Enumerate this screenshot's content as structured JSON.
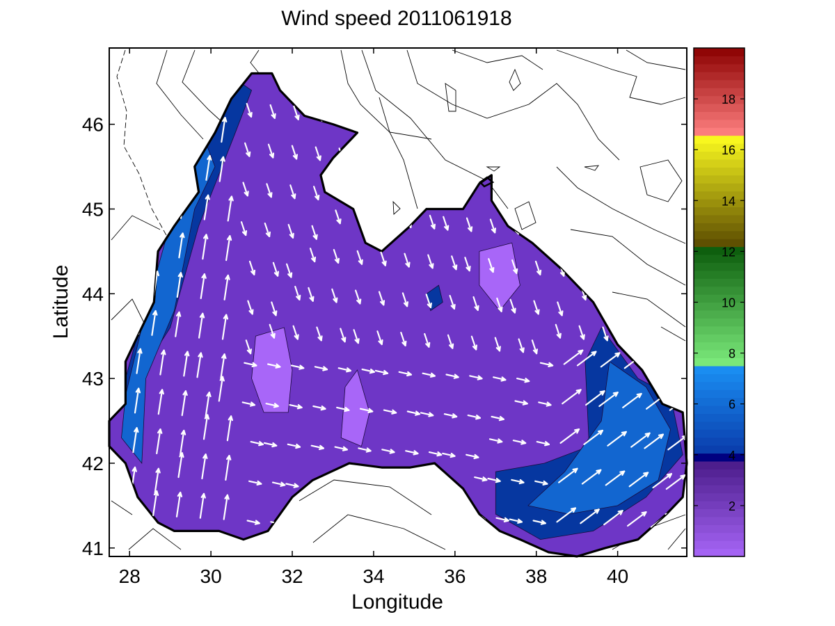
{
  "chart_data": {
    "type": "heatmap",
    "title": "Wind speed 2011061918",
    "xlabel": "Longitude",
    "ylabel": "Latitude",
    "xlim": [
      27.5,
      41.7
    ],
    "ylim": [
      40.9,
      46.9
    ],
    "xticks": [
      28,
      30,
      32,
      34,
      36,
      38,
      40
    ],
    "yticks": [
      41,
      42,
      43,
      44,
      45,
      46
    ],
    "grid": false,
    "colorbar": {
      "range": [
        0,
        20
      ],
      "ticks": [
        2,
        4,
        6,
        8,
        10,
        12,
        14,
        16,
        18
      ],
      "bands": [
        {
          "from": 0,
          "to": 3.7,
          "color_low": "#a866f8",
          "color_high": "#4a1c8a"
        },
        {
          "from": 3.7,
          "to": 4.2,
          "color_low": "#000080",
          "color_high": "#000080"
        },
        {
          "from": 4.2,
          "to": 7.4,
          "color_low": "#0a3fae",
          "color_high": "#1a8ef2"
        },
        {
          "from": 7.4,
          "to": 12.2,
          "color_low": "#80f080",
          "color_high": "#0a5a0a"
        },
        {
          "from": 12.2,
          "to": 16.6,
          "color_low": "#5a4a00",
          "color_high": "#ffff20"
        },
        {
          "from": 16.6,
          "to": 20,
          "color_low": "#ff8080",
          "color_high": "#8b0000"
        }
      ]
    },
    "wind_regions": [
      {
        "level": "weak",
        "speed": 1,
        "color": "#a866f8",
        "polygon": [
          [
            31.1,
            43.5
          ],
          [
            31.8,
            43.6
          ],
          [
            32.0,
            43.1
          ],
          [
            31.9,
            42.6
          ],
          [
            31.3,
            42.6
          ],
          [
            31.0,
            43.0
          ]
        ]
      },
      {
        "level": "weak",
        "speed": 1,
        "color": "#a866f8",
        "polygon": [
          [
            33.3,
            42.9
          ],
          [
            33.6,
            43.1
          ],
          [
            33.9,
            42.6
          ],
          [
            33.7,
            42.2
          ],
          [
            33.2,
            42.3
          ]
        ]
      },
      {
        "level": "weak",
        "speed": 1,
        "color": "#a866f8",
        "polygon": [
          [
            36.6,
            44.5
          ],
          [
            37.4,
            44.6
          ],
          [
            37.6,
            44.1
          ],
          [
            37.1,
            43.8
          ],
          [
            36.6,
            44.1
          ]
        ]
      },
      {
        "level": "strong",
        "speed": 4.5,
        "color": "#0637a0",
        "polygon": [
          [
            28.0,
            42.3
          ],
          [
            28.2,
            43.0
          ],
          [
            29.0,
            43.6
          ],
          [
            29.7,
            44.8
          ],
          [
            30.6,
            45.9
          ],
          [
            31.0,
            46.4
          ],
          [
            30.4,
            46.6
          ],
          [
            29.6,
            46.0
          ],
          [
            28.9,
            44.5
          ],
          [
            28.3,
            43.7
          ],
          [
            27.9,
            43.0
          ]
        ]
      },
      {
        "level": "strong",
        "speed": 6,
        "color": "#1266d0",
        "polygon": [
          [
            28.3,
            42.0
          ],
          [
            28.4,
            43.0
          ],
          [
            29.1,
            43.8
          ],
          [
            29.6,
            45.0
          ],
          [
            30.1,
            45.5
          ],
          [
            29.7,
            46.0
          ],
          [
            29.1,
            45.0
          ],
          [
            28.4,
            43.8
          ],
          [
            27.9,
            42.8
          ],
          [
            27.8,
            42.3
          ]
        ]
      },
      {
        "level": "strong",
        "speed": 4.5,
        "color": "#0637a0",
        "polygon": [
          [
            37.0,
            41.9
          ],
          [
            38.2,
            42.0
          ],
          [
            39.3,
            42.2
          ],
          [
            39.2,
            43.2
          ],
          [
            39.6,
            43.6
          ],
          [
            40.5,
            43.0
          ],
          [
            41.3,
            42.8
          ],
          [
            41.6,
            42.1
          ],
          [
            40.7,
            41.6
          ],
          [
            39.4,
            41.2
          ],
          [
            38.1,
            41.1
          ],
          [
            37.0,
            41.4
          ]
        ]
      },
      {
        "level": "strong",
        "speed": 6,
        "color": "#1266d0",
        "polygon": [
          [
            37.8,
            41.5
          ],
          [
            38.7,
            41.9
          ],
          [
            39.6,
            42.5
          ],
          [
            39.8,
            43.2
          ],
          [
            40.7,
            42.9
          ],
          [
            41.3,
            42.4
          ],
          [
            41.0,
            41.8
          ],
          [
            40.0,
            41.5
          ],
          [
            38.8,
            41.4
          ]
        ]
      },
      {
        "level": "strong",
        "speed": 4.5,
        "color": "#0637a0",
        "polygon": [
          [
            35.3,
            44.0
          ],
          [
            35.6,
            44.1
          ],
          [
            35.7,
            43.9
          ],
          [
            35.4,
            43.8
          ]
        ]
      }
    ]
  }
}
